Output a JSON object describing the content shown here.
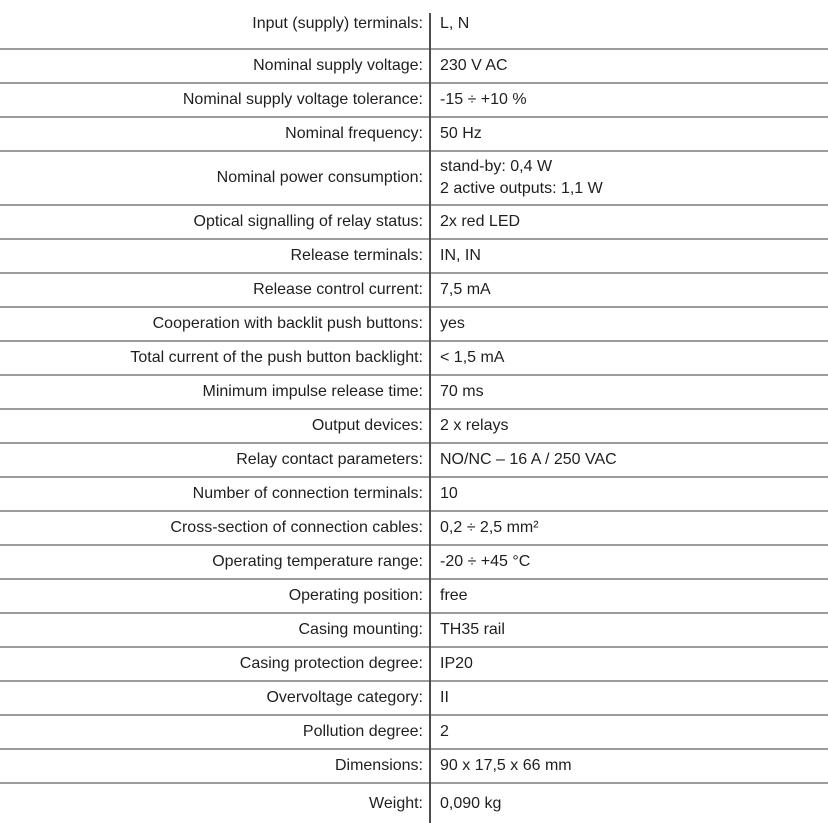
{
  "table": {
    "name": "device-technical-specification",
    "columns": [
      "parameter",
      "value"
    ]
  },
  "colors": {
    "background": "#ffffff",
    "text": "#1f1f1f",
    "horizontal_rule": "#9c9c9c",
    "vertical_rule": "#4d4d4d"
  },
  "rows": [
    {
      "label": "Input (supply) terminals:",
      "value": "L, N"
    },
    {
      "label": "Nominal supply voltage:",
      "value": "230 V AC"
    },
    {
      "label": "Nominal supply voltage tolerance:",
      "value": "-15 ÷ +10 %"
    },
    {
      "label": "Nominal frequency:",
      "value": "50 Hz"
    },
    {
      "label": "Nominal power consumption:",
      "value": "stand-by: 0,4 W\n2 active outputs: 1,1 W"
    },
    {
      "label": "Optical signalling of relay status:",
      "value": "2x red LED"
    },
    {
      "label": "Release terminals:",
      "value": "IN, IN"
    },
    {
      "label": "Release control current:",
      "value": "7,5 mA"
    },
    {
      "label": "Cooperation with backlit push buttons:",
      "value": "yes"
    },
    {
      "label": "Total current of the push button backlight:",
      "value": "< 1,5 mA"
    },
    {
      "label": "Minimum impulse release time:",
      "value": "70 ms"
    },
    {
      "label": "Output devices:",
      "value": "2 x relays"
    },
    {
      "label": "Relay contact parameters:",
      "value": "NO/NC – 16 A / 250 VAC"
    },
    {
      "label": "Number of connection terminals:",
      "value": "10"
    },
    {
      "label": "Cross-section of connection cables:",
      "value": "0,2 ÷ 2,5 mm²"
    },
    {
      "label": "Operating temperature range:",
      "value": "-20 ÷ +45 °C"
    },
    {
      "label": "Operating position:",
      "value": "free"
    },
    {
      "label": "Casing mounting:",
      "value": "TH35 rail"
    },
    {
      "label": "Casing protection degree:",
      "value": "IP20"
    },
    {
      "label": "Overvoltage category:",
      "value": "II"
    },
    {
      "label": "Pollution degree:",
      "value": "2"
    },
    {
      "label": "Dimensions:",
      "value": "90 x 17,5 x 66 mm"
    },
    {
      "label": "Weight:",
      "value": "0,090 kg"
    }
  ]
}
